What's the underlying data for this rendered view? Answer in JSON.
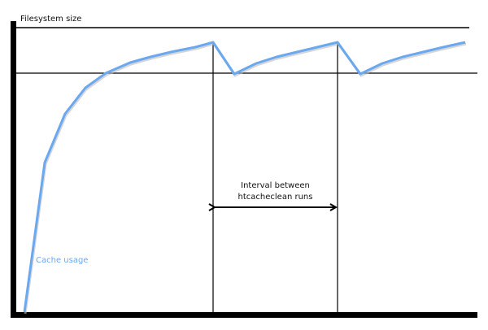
{
  "labels": {
    "filesystem_size": "Filesystem size",
    "cache_usage": "Cache usage",
    "interval_line1": "Interval between",
    "interval_line2": "htcacheclean runs"
  },
  "colors": {
    "cache_curve": "#6aa8f0",
    "axes": "#000000"
  }
}
